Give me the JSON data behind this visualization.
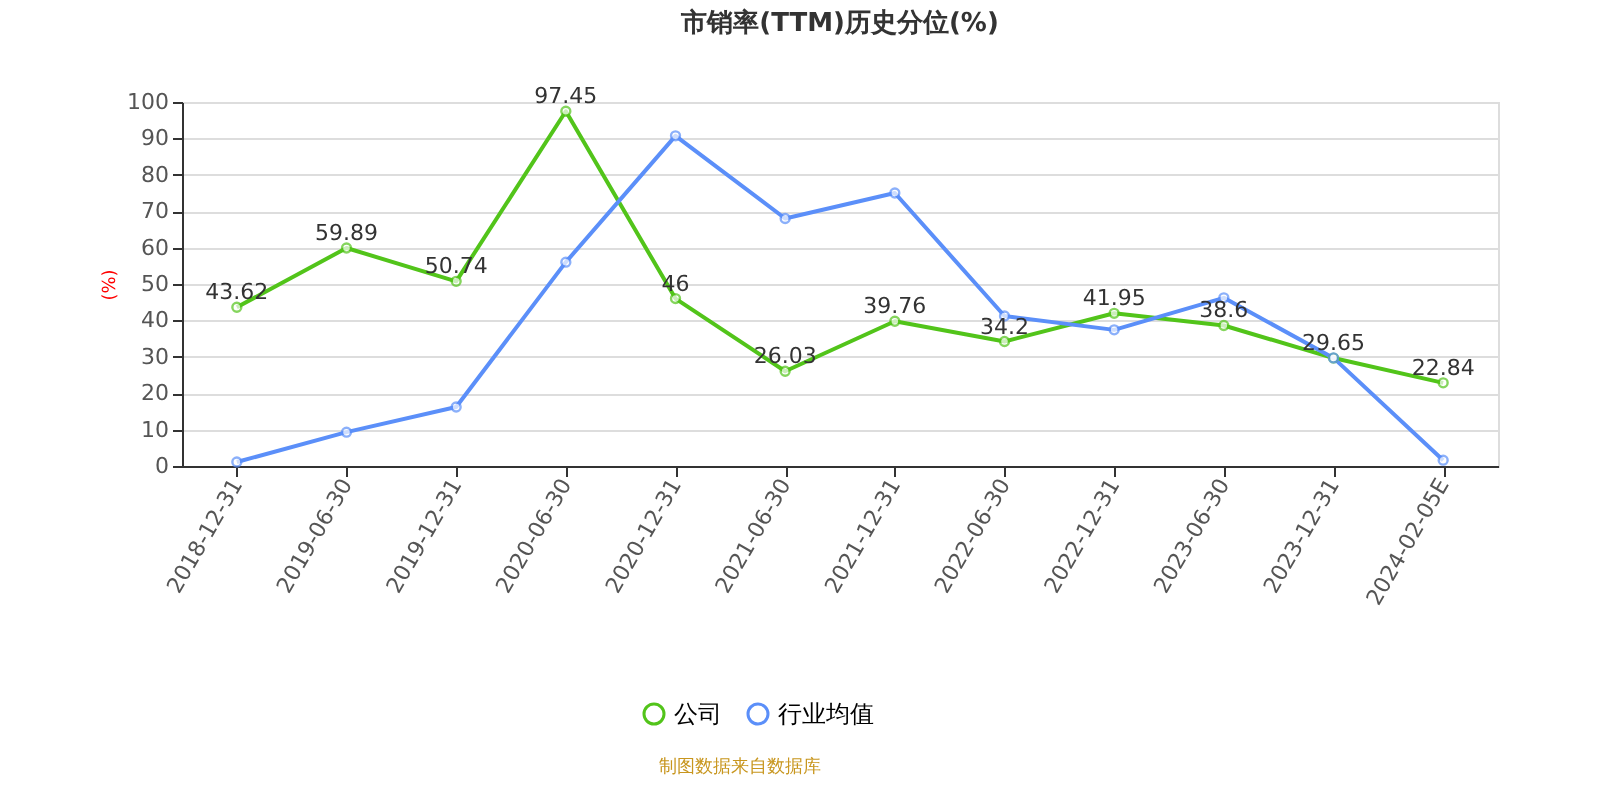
{
  "chart_data": {
    "type": "line",
    "title": "市销率(TTM)历史分位(%)",
    "ylabel": "(%)",
    "categories": [
      "2018-12-31",
      "2019-06-30",
      "2019-12-31",
      "2020-06-30",
      "2020-12-31",
      "2021-06-30",
      "2021-12-31",
      "2022-06-30",
      "2022-12-31",
      "2023-06-30",
      "2023-12-31",
      "2024-02-05E"
    ],
    "series": [
      {
        "name": "公司",
        "color": "#52c41a",
        "values": [
          43.62,
          59.89,
          50.74,
          97.45,
          46,
          26.03,
          39.76,
          34.2,
          41.95,
          38.6,
          29.65,
          22.84
        ],
        "value_labels": [
          "43.62",
          "59.89",
          "50.74",
          "97.45",
          "46",
          "26.03",
          "39.76",
          "34.2",
          "41.95",
          "38.6",
          "29.65",
          "22.84"
        ]
      },
      {
        "name": "行业均值",
        "color": "#5b8ff9",
        "values": [
          1.1,
          9.3,
          16.2,
          56,
          90.7,
          68,
          75,
          41.2,
          37.4,
          46.2,
          29.7,
          1.6
        ]
      }
    ],
    "ylim": [
      0,
      100
    ],
    "yticks": [
      0,
      10,
      20,
      30,
      40,
      50,
      60,
      70,
      80,
      90,
      100
    ],
    "grid": "y",
    "legend": "bottom",
    "marker": "circle",
    "line_style": "solid",
    "annotations": [
      "制图数据来自数据库"
    ]
  }
}
